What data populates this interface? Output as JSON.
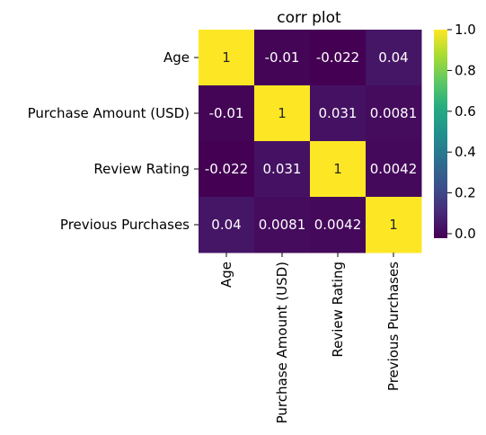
{
  "chart_data": {
    "type": "heatmap",
    "title": "corr plot",
    "row_labels": [
      "Age",
      "Purchase Amount (USD)",
      "Review Rating",
      "Previous Purchases"
    ],
    "col_labels": [
      "Age",
      "Purchase Amount (USD)",
      "Review Rating",
      "Previous Purchases"
    ],
    "values": [
      [
        1,
        -0.01,
        -0.022,
        0.04
      ],
      [
        -0.01,
        1,
        0.031,
        0.0081
      ],
      [
        -0.022,
        0.031,
        1,
        0.0042
      ],
      [
        0.04,
        0.0081,
        0.0042,
        1
      ]
    ],
    "cell_labels": [
      [
        "1",
        "-0.01",
        "-0.022",
        "0.04"
      ],
      [
        "-0.01",
        "1",
        "0.031",
        "0.0081"
      ],
      [
        "-0.022",
        "0.031",
        "1",
        "0.0042"
      ],
      [
        "0.04",
        "0.0081",
        "0.0042",
        "1"
      ]
    ],
    "colorbar": {
      "min": -0.022,
      "max": 1.0,
      "ticks": [
        0.0,
        0.2,
        0.4,
        0.6,
        0.8,
        1.0
      ],
      "tick_labels": [
        "0.0",
        "0.2",
        "0.4",
        "0.6",
        "0.8",
        "1.0"
      ]
    },
    "colormap": "viridis",
    "annotation_colors": {
      "light": "#ffffff",
      "dark": "#262626"
    }
  }
}
